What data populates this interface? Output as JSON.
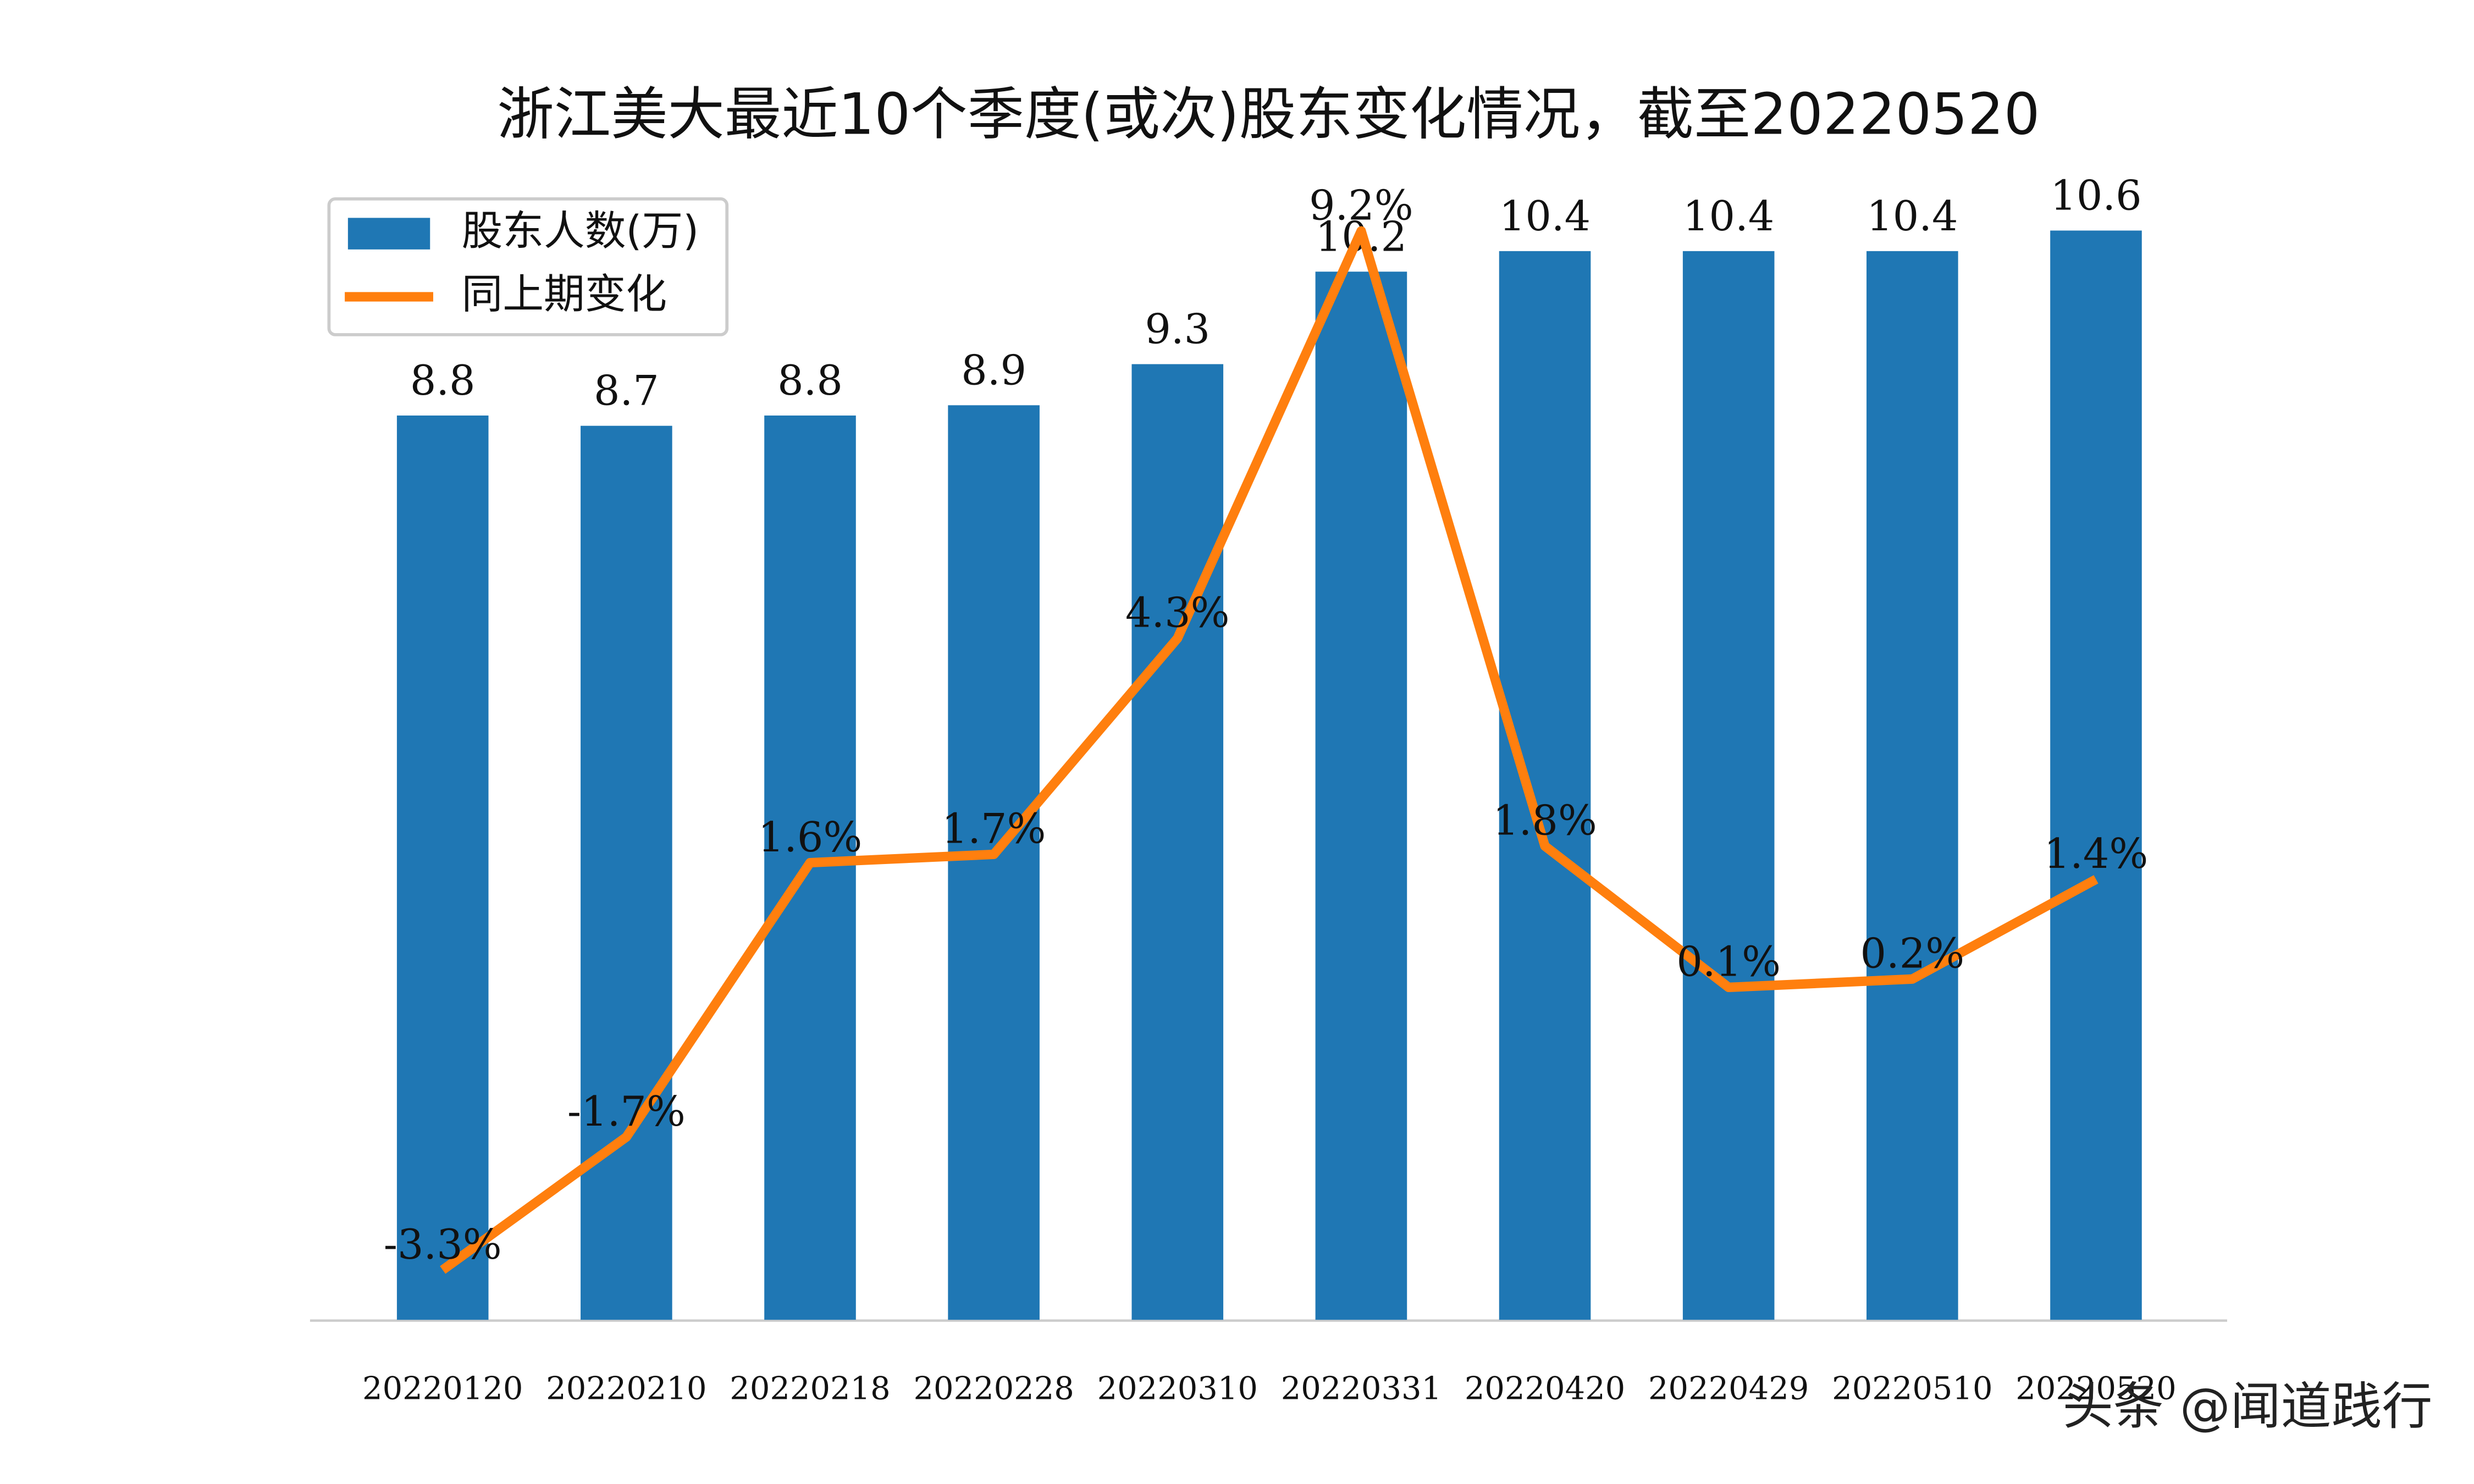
{
  "chart_data": {
    "type": "bar",
    "title": "浙江美大最近10个季度(或次)股东变化情况，截至20220520",
    "categories": [
      "20220120",
      "20220210",
      "20220218",
      "20220228",
      "20220310",
      "20220331",
      "20220420",
      "20220429",
      "20220510",
      "20220520"
    ],
    "series": [
      {
        "name": "股东人数(万)",
        "type": "bar",
        "color": "#1f77b4",
        "values": [
          8.8,
          8.7,
          8.8,
          8.9,
          9.3,
          10.2,
          10.4,
          10.4,
          10.4,
          10.6
        ]
      },
      {
        "name": "同上期变化",
        "type": "line",
        "axis": "y2",
        "color": "#ff7f0e",
        "values": [
          -3.3,
          -1.7,
          1.6,
          1.7,
          4.3,
          9.2,
          1.8,
          0.1,
          0.2,
          1.4
        ],
        "value_labels": [
          "-3.3%",
          "-1.7%",
          "1.6%",
          "1.7%",
          "4.3%",
          "9.2%",
          "1.8%",
          "0.1%",
          "0.2%",
          "1.4%"
        ]
      }
    ],
    "ylim": [
      0,
      11
    ],
    "y2lim": [
      -3.9,
      9.7
    ],
    "legend": "upper left",
    "watermark": "头条 @闻道践行"
  }
}
